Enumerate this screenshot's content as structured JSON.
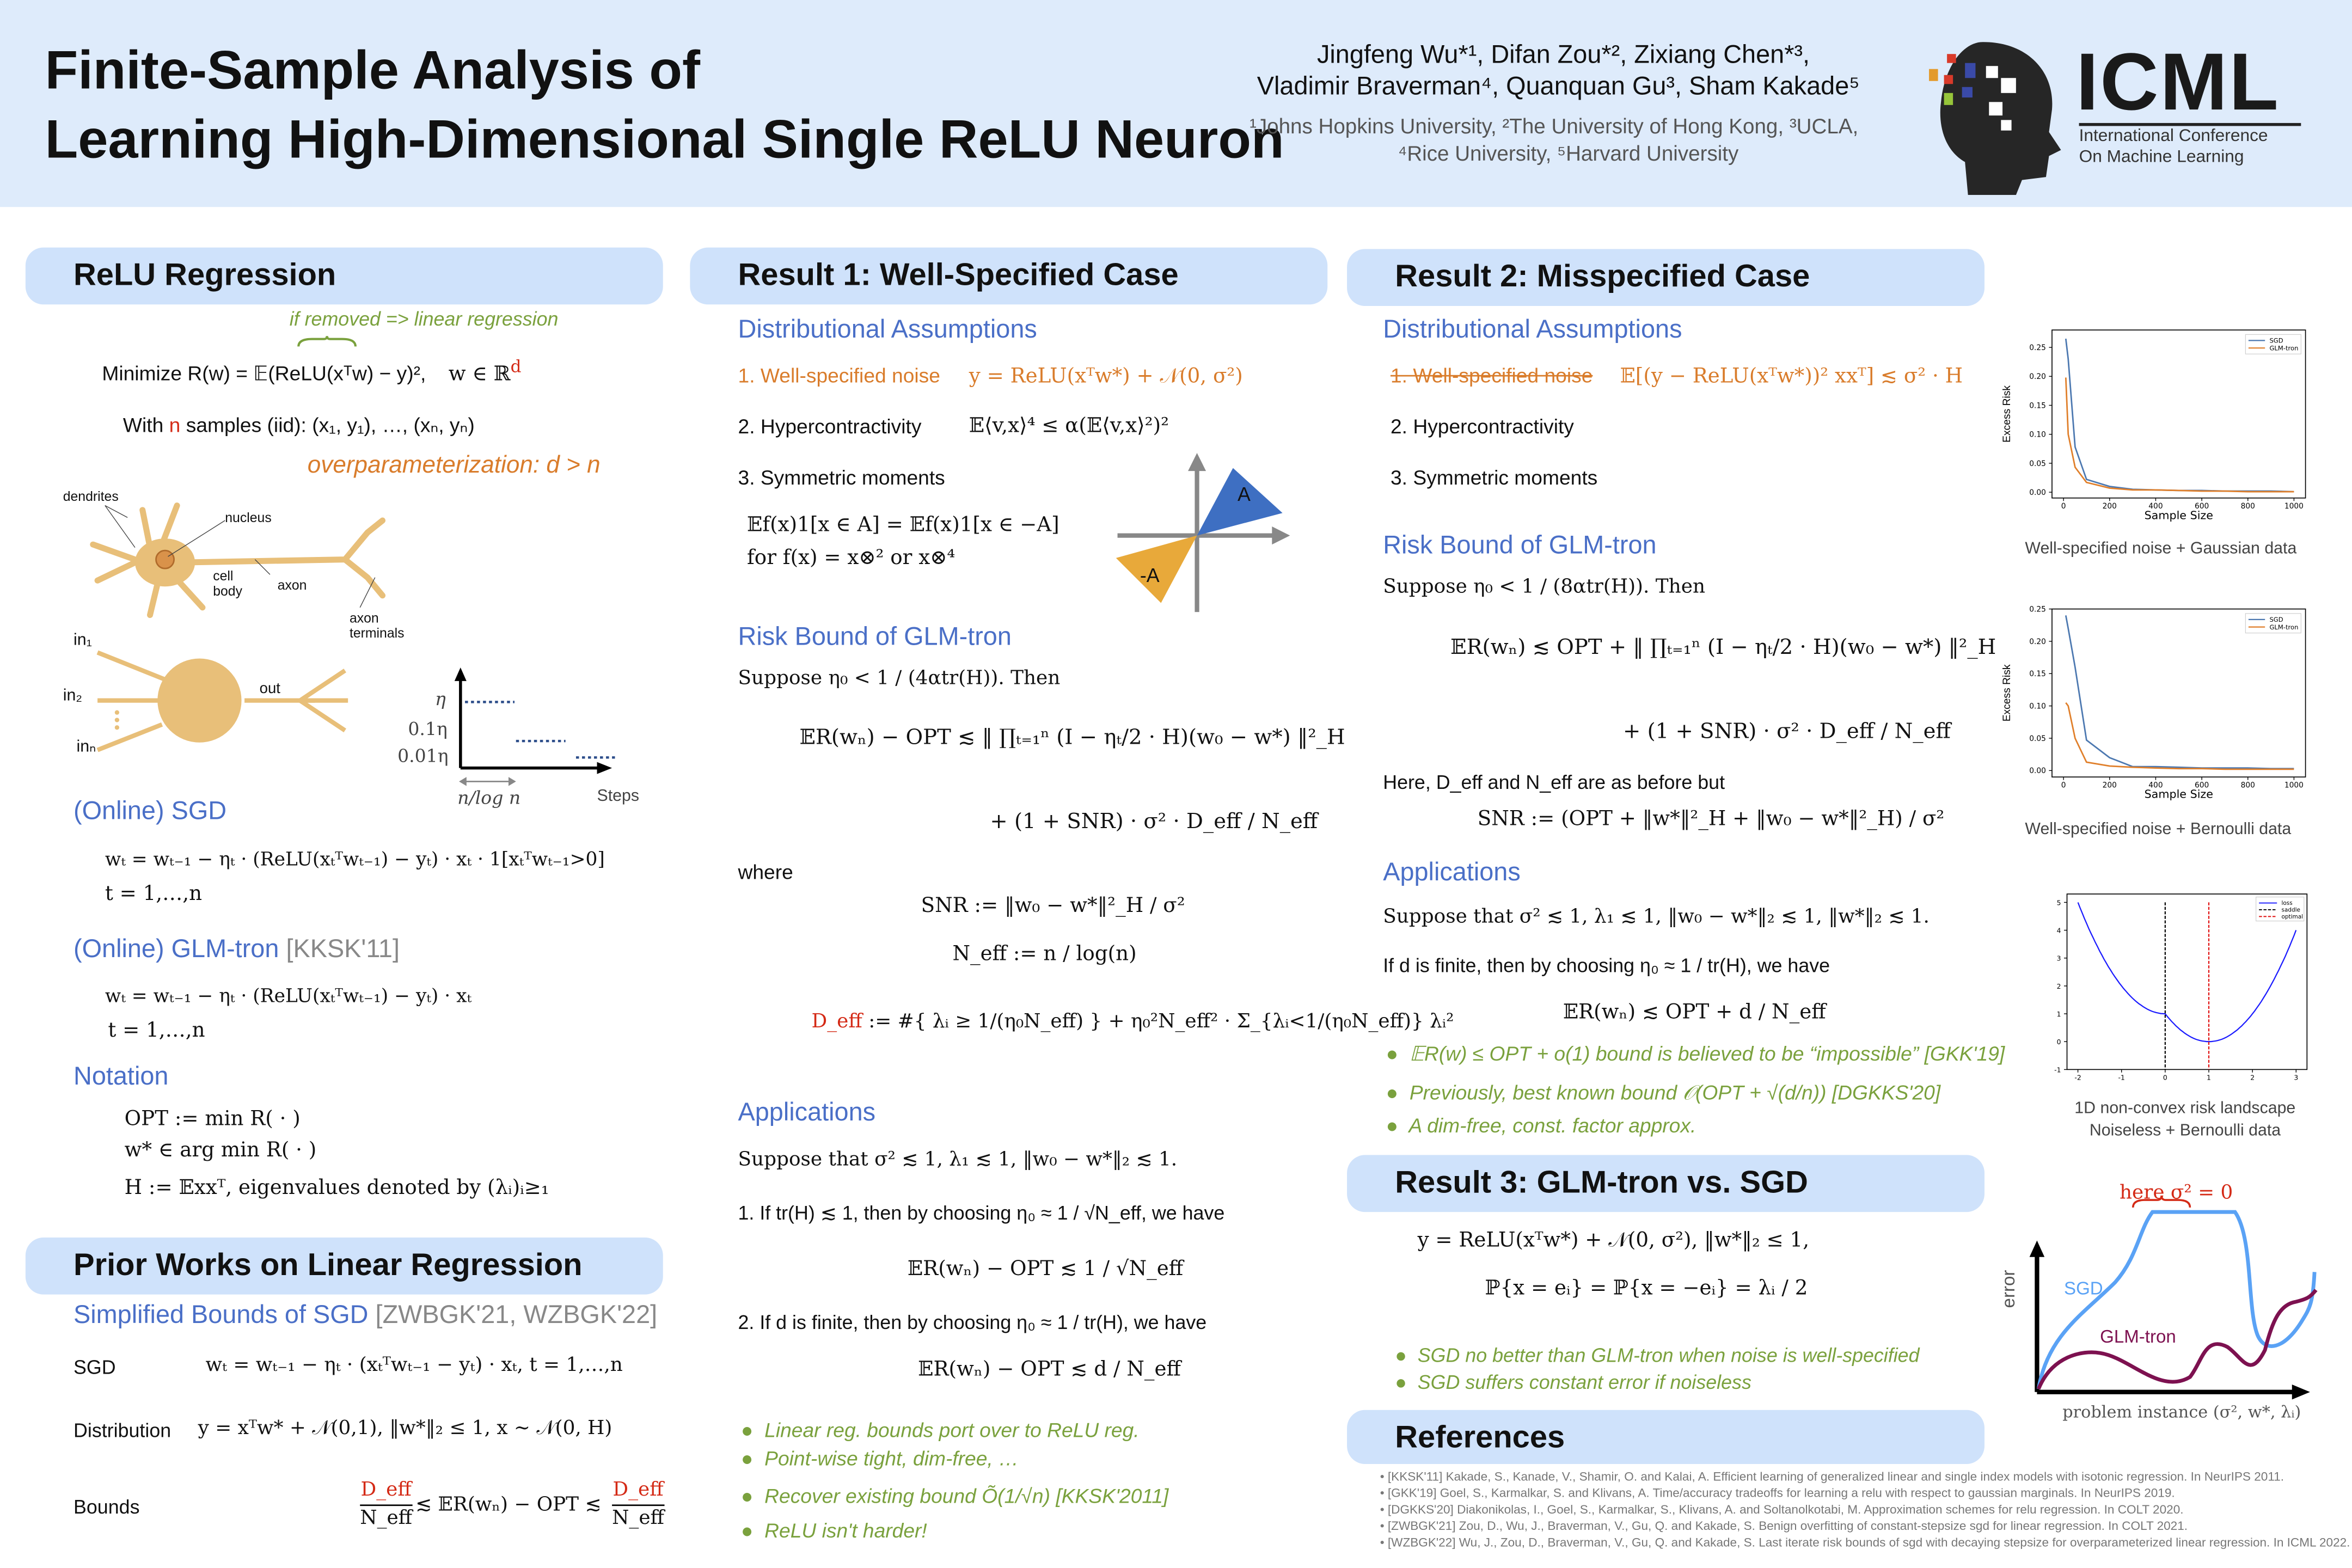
{
  "header": {
    "title_line1": "Finite-Sample Analysis of",
    "title_line2": "Learning High-Dimensional Single ReLU Neuron",
    "authors_line1": "Jingfeng Wu*¹, Difan Zou*², Zixiang Chen*³,",
    "authors_line2": "Vladimir Braverman⁴, Quanquan Gu³, Sham Kakade⁵",
    "affil_line1": "¹Johns Hopkins University, ²The University of Hong Kong, ³UCLA,",
    "affil_line2": "⁴Rice University, ⁵Harvard University",
    "logo": {
      "name": "ICML",
      "line1": "International Conference",
      "line2": "On Machine Learning"
    }
  },
  "col1": {
    "title": "ReLU Regression",
    "annotation": "if removed => linear regression",
    "objective": "Minimize R(w) = 𝔼(ReLU(xᵀw) − y)²,",
    "domain": "w ∈ ℝ",
    "domain_sup": "d",
    "samples_pre": "With ",
    "samples_n": "n",
    "samples_post": " samples (iid): (x₁, y₁), …, (xₙ, yₙ)",
    "overparam": "overparameterization: d > n",
    "neuron": {
      "dendrites": "dendrites",
      "nucleus": "nucleus",
      "cell": "cell",
      "body": "body",
      "axon": "axon",
      "axon_t1": "axon",
      "axon_t2": "terminals",
      "in1": "in₁",
      "in2": "in₂",
      "inn": "inₙ",
      "out": "out"
    },
    "schedule": {
      "eta": "η",
      "eta01": "0.1η",
      "eta001": "0.01η",
      "phase": "n/log n",
      "steps": "Steps"
    },
    "sgd_title": "(Online) SGD",
    "sgd_formula": "wₜ = wₜ₋₁ − ηₜ · (ReLU(xₜᵀwₜ₋₁) − yₜ) · xₜ · 1[xₜᵀwₜ₋₁>0]",
    "sgd_range": "t = 1,…,n",
    "glm_title": "(Online) GLM-tron",
    "glm_cite": "[KKSK'11]",
    "glm_formula": "wₜ = wₜ₋₁ − ηₜ · (ReLU(xₜᵀwₜ₋₁) − yₜ) · xₜ",
    "glm_range": "t = 1,…,n",
    "notation_title": "Notation",
    "notation": [
      "OPT := min R( · )",
      "w* ∈ arg min R( · )",
      "H := 𝔼xxᵀ,  eigenvalues denoted by (λᵢ)ᵢ≥₁"
    ],
    "prior_title": "Prior Works on Linear Regression",
    "prior_sub": "Simplified Bounds of SGD",
    "prior_cite": "[ZWBGK'21, WZBGK'22]",
    "rows": [
      {
        "label": "SGD",
        "formula": "wₜ = wₜ₋₁ − ηₜ · (xₜᵀwₜ₋₁ − yₜ) · xₜ,    t = 1,…,n"
      },
      {
        "label": "Distribution",
        "formula": "y = xᵀw* + 𝒩(0,1),   ‖w*‖₂ ≤ 1,   x ∼ 𝒩(0, H)"
      },
      {
        "label": "Bounds",
        "formula": "≲ 𝔼R(wₙ) − OPT ≲"
      }
    ],
    "deff": "D_eff",
    "neff": "N_eff"
  },
  "col2": {
    "title": "Result 1: Well-Specified Case",
    "assump_title": "Distributional Assumptions",
    "a1": "1. Well-specified noise",
    "a1_formula": "y = ReLU(xᵀw*) + 𝒩(0, σ²)",
    "a2": "2. Hypercontractivity",
    "a2_formula": "𝔼⟨v,x⟩⁴ ≤ α(𝔼⟨v,x⟩²)²",
    "a3": "3. Symmetric moments",
    "a3_formula1": "𝔼f(x)1[x ∈ A] = 𝔼f(x)1[x ∈ −A]",
    "a3_formula2": "for f(x) = x⊗² or x⊗⁴",
    "diagram": {
      "a": "A",
      "neg_a": "-A"
    },
    "risk_title": "Risk Bound of GLM-tron",
    "risk_suppose": "Suppose η₀ < 1 / (4αtr(H)). Then",
    "risk_line1": "𝔼R(wₙ) − OPT ≲ ‖ ∏ₜ₌₁ⁿ (I − ηₜ/2 · H)(w₀ − w*) ‖²_H",
    "risk_line2": "+ (1 + SNR) · σ² · D_eff / N_eff",
    "where": "where",
    "snr": "SNR := ‖w₀ − w*‖²_H / σ²",
    "neff_def": "N_eff := n / log(n)",
    "deff_label": "D_eff",
    "deff_def": ":= #{ λᵢ ≥ 1/(η₀N_eff) } + η₀²N_eff² · Σ_{λᵢ<1/(η₀N_eff)} λᵢ²",
    "app_title": "Applications",
    "app_suppose": "Suppose that σ² ≲ 1, λ₁ ≲ 1, ‖w₀ − w*‖₂ ≲ 1.",
    "app1": "1. If tr(H) ≲ 1, then by choosing η₀ ≈ 1 / √N_eff, we have",
    "app1_result": "𝔼R(wₙ) − OPT ≲ 1 / √N_eff",
    "app2": "2. If d is finite, then by choosing η₀ ≈ 1 / tr(H), we have",
    "app2_result": "𝔼R(wₙ) − OPT ≲ d / N_eff",
    "bullets": [
      "Linear reg. bounds port over to ReLU reg.",
      "Point-wise tight, dim-free, …",
      "Recover existing bound Õ(1/√n) [KKSK'2011]",
      "ReLU isn't harder!"
    ]
  },
  "col3": {
    "title": "Result 2: Misspecified Case",
    "assump_title": "Distributional Assumptions",
    "a1": "1. Well-specified noise",
    "a1_formula": "𝔼[(y − ReLU(xᵀw*))² xxᵀ] ≲ σ² · H",
    "a2": "2. Hypercontractivity",
    "a3": "3. Symmetric moments",
    "risk_title": "Risk Bound of GLM-tron",
    "risk_suppose": "Suppose η₀ < 1 / (8αtr(H)). Then",
    "risk_line1": "𝔼R(wₙ) ≲ OPT + ‖ ∏ₜ₌₁ⁿ (I − ηₜ/2 · H)(w₀ − w*) ‖²_H",
    "risk_line2": "+ (1 + SNR) · σ² · D_eff / N_eff",
    "here": "Here, D_eff and N_eff are as before but",
    "snr": "SNR := (OPT + ‖w*‖²_H + ‖w₀ − w*‖²_H) / σ²",
    "app_title": "Applications",
    "app_suppose": "Suppose that σ² ≲ 1, λ₁ ≲ 1, ‖w₀ − w*‖₂ ≲ 1, ‖w*‖₂ ≲ 1.",
    "app1": "If d is finite, then by choosing η₀ ≈ 1 / tr(H), we have",
    "app1_result": "𝔼R(wₙ) ≲ OPT + d / N_eff",
    "bullets": [
      "𝔼R(w) ≤ OPT + o(1) bound is believed to be “impossible” [GKK'19]",
      "Previously, best known bound 𝒪(OPT + √(d/n)) [DGKKS'20]",
      "A dim-free, const. factor approx."
    ],
    "r3_title": "Result 3: GLM-tron vs. SGD",
    "r3_line1": "y = ReLU(xᵀw*) + 𝒩(0, σ²),      ‖w*‖₂ ≤ 1,",
    "r3_line2": "ℙ{x = eᵢ} = ℙ{x = −eᵢ} = λᵢ / 2",
    "r3_bullets": [
      "SGD no better than GLM-tron when noise is well-specified",
      "SGD suffers constant error if noiseless"
    ],
    "refs_title": "References",
    "refs": [
      "[KKSK'11] Kakade, S., Kanade, V., Shamir, O. and Kalai, A. Efficient learning of generalized linear and single index models with isotonic regression. In NeurIPS 2011.",
      "[GKK'19] Goel, S., Karmalkar, S. and Klivans, A. Time/accuracy tradeoffs for learning a relu with respect to gaussian marginals. In NeurIPS 2019.",
      "[DGKKS'20] Diakonikolas, I., Goel, S., Karmalkar, S., Klivans, A. and Soltanolkotabi, M. Approximation schemes for relu regression. In COLT 2020.",
      "[ZWBGK'21] Zou, D., Wu, J., Braverman, V., Gu, Q. and Kakade, S. Benign overfitting of constant-stepsize sgd for linear regression. In COLT 2021.",
      "[WZBGK'22] Wu, J., Zou, D., Braverman, V., Gu, Q. and Kakade, S. Last iterate risk bounds of sgd with decaying stepsize for overparameterized linear regression. In ICML 2022."
    ]
  },
  "chart_data": [
    {
      "type": "line",
      "title": "Well-specified noise + Gaussian data",
      "xlabel": "Sample Size",
      "ylabel": "Excess Risk",
      "xlim": [
        -50,
        1050
      ],
      "ylim": [
        -0.01,
        0.28
      ],
      "xticks": [
        0,
        200,
        400,
        600,
        800,
        1000
      ],
      "yticks": [
        "0.00",
        "0.05",
        "0.10",
        "0.15",
        "0.20",
        "0.25"
      ],
      "legend": "top-right",
      "grid": false,
      "x": [
        10,
        20,
        50,
        100,
        200,
        300,
        400,
        500,
        600,
        700,
        800,
        900,
        1000
      ],
      "series": [
        {
          "name": "SGD",
          "color": "#4c78b0",
          "values": [
            0.265,
            0.23,
            0.078,
            0.022,
            0.01,
            0.005,
            0.004,
            0.003,
            0.003,
            0.002,
            0.002,
            0.002,
            0.001
          ]
        },
        {
          "name": "GLM-tron",
          "color": "#e07f2a",
          "values": [
            0.198,
            0.1,
            0.043,
            0.017,
            0.007,
            0.004,
            0.004,
            0.003,
            0.002,
            0.002,
            0.001,
            0.001,
            0.001
          ]
        }
      ]
    },
    {
      "type": "line",
      "title": "Well-specified noise + Bernoulli data",
      "xlabel": "Sample Size",
      "ylabel": "Excess Risk",
      "xlim": [
        -50,
        1050
      ],
      "ylim": [
        -0.01,
        0.25
      ],
      "xticks": [
        0,
        200,
        400,
        600,
        800,
        1000
      ],
      "yticks": [
        "0.00",
        "0.05",
        "0.10",
        "0.15",
        "0.20",
        "0.25"
      ],
      "legend": "top-right",
      "grid": false,
      "x": [
        10,
        20,
        50,
        100,
        200,
        300,
        400,
        500,
        600,
        700,
        800,
        900,
        1000
      ],
      "series": [
        {
          "name": "SGD",
          "color": "#4c78b0",
          "values": [
            0.24,
            0.22,
            0.16,
            0.047,
            0.02,
            0.006,
            0.006,
            0.005,
            0.004,
            0.004,
            0.004,
            0.003,
            0.003
          ]
        },
        {
          "name": "GLM-tron",
          "color": "#e07f2a",
          "values": [
            0.105,
            0.1,
            0.05,
            0.013,
            0.007,
            0.005,
            0.004,
            0.003,
            0.003,
            0.002,
            0.002,
            0.002,
            0.002
          ]
        }
      ]
    },
    {
      "type": "line",
      "title": "1D non-convex risk landscape",
      "subtitle": "Noiseless + Bernoulli data",
      "xlim": [
        -2.25,
        3.25
      ],
      "ylim": [
        -1,
        5.3
      ],
      "xticks": [
        -2,
        -1,
        0,
        1,
        2,
        3
      ],
      "yticks": [
        -1,
        0,
        1,
        2,
        3,
        4,
        5
      ],
      "legend": "top-right",
      "grid": false,
      "series": [
        {
          "name": "loss",
          "color": "#1a1aff",
          "function": "x<0: x²+1; x≥0: (x−1)²",
          "x_range": [
            -2,
            3
          ]
        },
        {
          "name": "saddle",
          "color": "#000000",
          "style": "dashed",
          "x": 0
        },
        {
          "name": "optimal",
          "color": "#e01010",
          "style": "dashed",
          "x": 1
        }
      ]
    },
    {
      "type": "line",
      "xlabel": "problem instance (σ², w*, λᵢ)",
      "ylabel": "error",
      "annotation": "here σ² = 0",
      "series": [
        {
          "name": "SGD",
          "color": "#5aa2f5"
        },
        {
          "name": "GLM-tron",
          "color": "#7d1150"
        }
      ]
    }
  ],
  "colors": {
    "header_bg": "#deebfb",
    "section_bg": "#cfe2fb",
    "accent_blue": "#4a6fc7",
    "accent_orange": "#d97c2b",
    "accent_green": "#7aa13d",
    "red": "#d42a16"
  }
}
